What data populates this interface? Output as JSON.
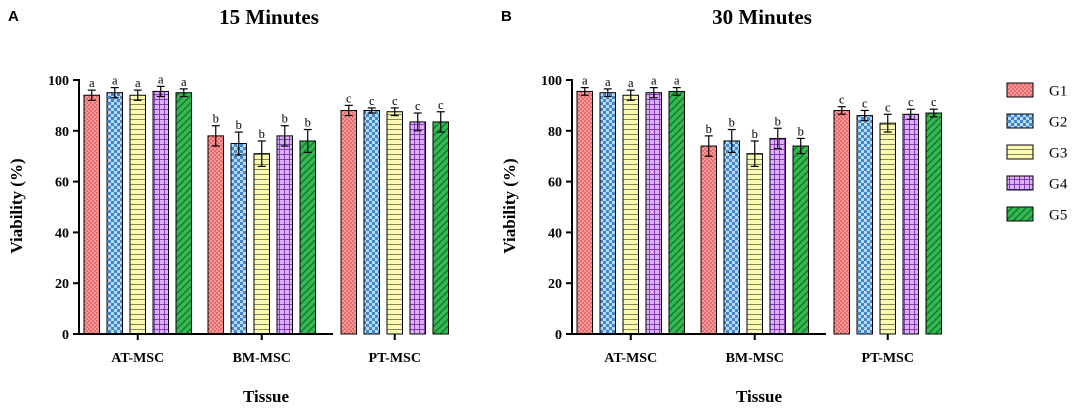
{
  "legend": {
    "entries": [
      "G1",
      "G2",
      "G3",
      "G4",
      "G5"
    ]
  },
  "colors": {
    "G1": "#f07373",
    "G2": "#4f96d8",
    "G3": "#fafaa6",
    "G4": "#c36df0",
    "G5": "#2caf4a",
    "G2_alt": "#b9d9f5",
    "G4_alt": "#ead1fb"
  },
  "chart_data": [
    {
      "panel": "A",
      "type": "bar",
      "title": "15 Minutes",
      "xlabel": "Tissue",
      "ylabel": "Viability (%)",
      "ylim": [
        0,
        100
      ],
      "yticks": [
        0,
        20,
        40,
        60,
        80,
        100
      ],
      "categories": [
        "AT-MSC",
        "BM-MSC",
        "PT-MSC"
      ],
      "series": [
        {
          "name": "G1",
          "values": [
            94,
            78,
            88
          ],
          "errors": [
            2,
            4,
            2
          ],
          "labels": [
            "a",
            "b",
            "c"
          ]
        },
        {
          "name": "G2",
          "values": [
            95,
            75,
            88
          ],
          "errors": [
            2,
            4.5,
            1
          ],
          "labels": [
            "a",
            "b",
            "c"
          ]
        },
        {
          "name": "G3",
          "values": [
            94,
            71,
            87.5
          ],
          "errors": [
            2,
            5,
            1.5
          ],
          "labels": [
            "a",
            "b",
            "c"
          ]
        },
        {
          "name": "G4",
          "values": [
            95.5,
            78,
            83.5
          ],
          "errors": [
            2,
            4,
            3.5
          ],
          "labels": [
            "a",
            "b",
            "c"
          ]
        },
        {
          "name": "G5",
          "values": [
            95,
            76,
            83.5
          ],
          "errors": [
            1.5,
            4.5,
            4
          ],
          "labels": [
            "a",
            "b",
            "c"
          ]
        }
      ]
    },
    {
      "panel": "B",
      "type": "bar",
      "title": "30 Minutes",
      "xlabel": "Tissue",
      "ylabel": "Viability (%)",
      "ylim": [
        0,
        100
      ],
      "yticks": [
        0,
        20,
        40,
        60,
        80,
        100
      ],
      "categories": [
        "AT-MSC",
        "BM-MSC",
        "PT-MSC"
      ],
      "series": [
        {
          "name": "G1",
          "values": [
            95.5,
            74,
            88
          ],
          "errors": [
            1.5,
            4,
            1.5
          ],
          "labels": [
            "a",
            "b",
            "c"
          ]
        },
        {
          "name": "G2",
          "values": [
            95,
            76,
            86
          ],
          "errors": [
            1.5,
            4.5,
            2
          ],
          "labels": [
            "a",
            "b",
            "c"
          ]
        },
        {
          "name": "G3",
          "values": [
            94,
            71,
            83
          ],
          "errors": [
            2,
            5,
            3.5
          ],
          "labels": [
            "a",
            "b",
            "c"
          ]
        },
        {
          "name": "G4",
          "values": [
            95,
            77,
            86.5
          ],
          "errors": [
            2,
            4,
            2
          ],
          "labels": [
            "a",
            "b",
            "c"
          ]
        },
        {
          "name": "G5",
          "values": [
            95.5,
            74,
            87
          ],
          "errors": [
            1.5,
            3,
            1.5
          ],
          "labels": [
            "a",
            "b",
            "c"
          ]
        }
      ]
    }
  ]
}
